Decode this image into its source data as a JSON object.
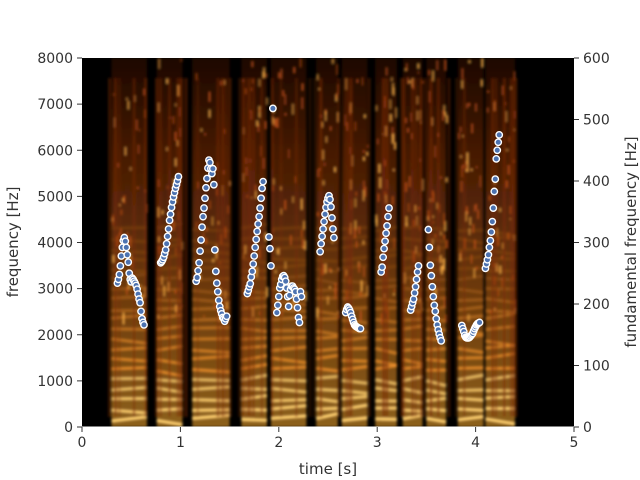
{
  "chart_data": {
    "type": "scatter",
    "description_free": true,
    "background": "spectrogram",
    "xlabel": "time [s]",
    "ylabel_left": "frequency [Hz]",
    "ylabel_right": "fundamental frequency [Hz]",
    "xlim": [
      0,
      5
    ],
    "ylim_left": [
      0,
      8000
    ],
    "ylim_right": [
      0,
      600
    ],
    "xticks": [
      0,
      1,
      2,
      3,
      4,
      5
    ],
    "yticks_left": [
      0,
      1000,
      2000,
      3000,
      4000,
      5000,
      6000,
      7000,
      8000
    ],
    "yticks_right": [
      0,
      100,
      200,
      300,
      400,
      500,
      600
    ],
    "grid": false,
    "marker_color": "#4c72b0",
    "marker_edge": "#ffffff",
    "series": [
      {
        "axis": "right",
        "points": [
          [
            0.36,
            234
          ],
          [
            0.37,
            240
          ],
          [
            0.38,
            248
          ],
          [
            0.39,
            262
          ],
          [
            0.4,
            278
          ],
          [
            0.41,
            292
          ],
          [
            0.42,
            303
          ],
          [
            0.43,
            308
          ],
          [
            0.44,
            302
          ],
          [
            0.45,
            292
          ],
          [
            0.46,
            280
          ],
          [
            0.47,
            268
          ],
          [
            0.48,
            250
          ],
          [
            0.49,
            240
          ],
          [
            0.5,
            236
          ],
          [
            0.51,
            242
          ],
          [
            0.52,
            240
          ],
          [
            0.53,
            237
          ],
          [
            0.54,
            234
          ],
          [
            0.55,
            230
          ],
          [
            0.56,
            224
          ],
          [
            0.57,
            216
          ],
          [
            0.58,
            208
          ],
          [
            0.59,
            202
          ],
          [
            0.6,
            188
          ],
          [
            0.61,
            176
          ],
          [
            0.62,
            170
          ],
          [
            0.63,
            166
          ],
          [
            0.8,
            267
          ],
          [
            0.81,
            269
          ],
          [
            0.82,
            272
          ],
          [
            0.83,
            276
          ],
          [
            0.84,
            282
          ],
          [
            0.85,
            288
          ],
          [
            0.86,
            298
          ],
          [
            0.87,
            310
          ],
          [
            0.88,
            322
          ],
          [
            0.89,
            336
          ],
          [
            0.9,
            346
          ],
          [
            0.91,
            357
          ],
          [
            0.92,
            366
          ],
          [
            0.93,
            374
          ],
          [
            0.94,
            381
          ],
          [
            0.95,
            388
          ],
          [
            0.96,
            394
          ],
          [
            0.97,
            400
          ],
          [
            0.98,
            407
          ],
          [
            1.16,
            237
          ],
          [
            1.17,
            243
          ],
          [
            1.18,
            254
          ],
          [
            1.19,
            267
          ],
          [
            1.2,
            286
          ],
          [
            1.21,
            304
          ],
          [
            1.22,
            325
          ],
          [
            1.23,
            342
          ],
          [
            1.24,
            356
          ],
          [
            1.25,
            372
          ],
          [
            1.26,
            389
          ],
          [
            1.27,
            404
          ],
          [
            1.28,
            421
          ],
          [
            1.29,
            434
          ],
          [
            1.3,
            430
          ],
          [
            1.31,
            420
          ],
          [
            1.32,
            412
          ],
          [
            1.33,
            420
          ],
          [
            1.34,
            394
          ],
          [
            1.35,
            288
          ],
          [
            1.36,
            253
          ],
          [
            1.37,
            234
          ],
          [
            1.38,
            220
          ],
          [
            1.39,
            206
          ],
          [
            1.4,
            196
          ],
          [
            1.41,
            189
          ],
          [
            1.42,
            184
          ],
          [
            1.43,
            178
          ],
          [
            1.44,
            176
          ],
          [
            1.45,
            172
          ],
          [
            1.46,
            176
          ],
          [
            1.47,
            180
          ],
          [
            1.68,
            217
          ],
          [
            1.69,
            222
          ],
          [
            1.7,
            228
          ],
          [
            1.71,
            233
          ],
          [
            1.72,
            244
          ],
          [
            1.73,
            253
          ],
          [
            1.74,
            265
          ],
          [
            1.75,
            278
          ],
          [
            1.76,
            292
          ],
          [
            1.77,
            305
          ],
          [
            1.78,
            318
          ],
          [
            1.79,
            330
          ],
          [
            1.8,
            342
          ],
          [
            1.81,
            356
          ],
          [
            1.82,
            372
          ],
          [
            1.83,
            388
          ],
          [
            1.84,
            399
          ],
          [
            1.9,
            309
          ],
          [
            1.91,
            290
          ],
          [
            1.92,
            262
          ],
          [
            1.94,
            518
          ],
          [
            1.98,
            186
          ],
          [
            1.99,
            198
          ],
          [
            2.0,
            212
          ],
          [
            2.01,
            226
          ],
          [
            2.02,
            232
          ],
          [
            2.03,
            240
          ],
          [
            2.04,
            245
          ],
          [
            2.05,
            246
          ],
          [
            2.06,
            243
          ],
          [
            2.07,
            237
          ],
          [
            2.08,
            226
          ],
          [
            2.09,
            212
          ],
          [
            2.1,
            196
          ],
          [
            2.11,
            214
          ],
          [
            2.12,
            224
          ],
          [
            2.13,
            229
          ],
          [
            2.14,
            229
          ],
          [
            2.15,
            226
          ],
          [
            2.16,
            224
          ],
          [
            2.17,
            220
          ],
          [
            2.18,
            208
          ],
          [
            2.19,
            194
          ],
          [
            2.2,
            178
          ],
          [
            2.21,
            170
          ],
          [
            2.22,
            220
          ],
          [
            2.23,
            212
          ],
          [
            2.42,
            285
          ],
          [
            2.43,
            298
          ],
          [
            2.44,
            310
          ],
          [
            2.45,
            322
          ],
          [
            2.46,
            334
          ],
          [
            2.47,
            346
          ],
          [
            2.48,
            357
          ],
          [
            2.49,
            366
          ],
          [
            2.5,
            372
          ],
          [
            2.51,
            376
          ],
          [
            2.52,
            370
          ],
          [
            2.53,
            358
          ],
          [
            2.54,
            340
          ],
          [
            2.55,
            322
          ],
          [
            2.56,
            308
          ],
          [
            2.68,
            186
          ],
          [
            2.69,
            191
          ],
          [
            2.7,
            195
          ],
          [
            2.71,
            193
          ],
          [
            2.72,
            190
          ],
          [
            2.73,
            186
          ],
          [
            2.74,
            180
          ],
          [
            2.75,
            175
          ],
          [
            2.76,
            170
          ],
          [
            2.77,
            166
          ],
          [
            2.78,
            164
          ],
          [
            2.79,
            163
          ],
          [
            2.8,
            162
          ],
          [
            2.81,
            161
          ],
          [
            2.82,
            160
          ],
          [
            2.83,
            160
          ],
          [
            3.04,
            252
          ],
          [
            3.05,
            260
          ],
          [
            3.06,
            276
          ],
          [
            3.07,
            290
          ],
          [
            3.08,
            302
          ],
          [
            3.09,
            315
          ],
          [
            3.1,
            327
          ],
          [
            3.11,
            342
          ],
          [
            3.12,
            356
          ],
          [
            3.34,
            190
          ],
          [
            3.35,
            196
          ],
          [
            3.36,
            202
          ],
          [
            3.37,
            208
          ],
          [
            3.38,
            218
          ],
          [
            3.39,
            228
          ],
          [
            3.4,
            240
          ],
          [
            3.41,
            252
          ],
          [
            3.42,
            262
          ],
          [
            3.52,
            321
          ],
          [
            3.53,
            292
          ],
          [
            3.54,
            263
          ],
          [
            3.55,
            246
          ],
          [
            3.56,
            228
          ],
          [
            3.57,
            212
          ],
          [
            3.58,
            198
          ],
          [
            3.59,
            188
          ],
          [
            3.6,
            176
          ],
          [
            3.61,
            166
          ],
          [
            3.62,
            158
          ],
          [
            3.63,
            151
          ],
          [
            3.64,
            145
          ],
          [
            3.65,
            140
          ],
          [
            3.86,
            165
          ],
          [
            3.87,
            160
          ],
          [
            3.88,
            155
          ],
          [
            3.89,
            149
          ],
          [
            3.9,
            146
          ],
          [
            3.91,
            145
          ],
          [
            3.92,
            145
          ],
          [
            3.93,
            145
          ],
          [
            3.94,
            146
          ],
          [
            3.95,
            148
          ],
          [
            3.96,
            150
          ],
          [
            3.97,
            152
          ],
          [
            3.98,
            156
          ],
          [
            3.99,
            160
          ],
          [
            4.0,
            163
          ],
          [
            4.01,
            166
          ],
          [
            4.02,
            168
          ],
          [
            4.03,
            169
          ],
          [
            4.04,
            170
          ],
          [
            4.1,
            258
          ],
          [
            4.11,
            265
          ],
          [
            4.12,
            272
          ],
          [
            4.13,
            280
          ],
          [
            4.14,
            292
          ],
          [
            4.15,
            303
          ],
          [
            4.16,
            317
          ],
          [
            4.17,
            334
          ],
          [
            4.18,
            356
          ],
          [
            4.19,
            383
          ],
          [
            4.2,
            403
          ],
          [
            4.21,
            436
          ],
          [
            4.22,
            450
          ],
          [
            4.23,
            463
          ],
          [
            4.24,
            475
          ]
        ]
      }
    ]
  }
}
